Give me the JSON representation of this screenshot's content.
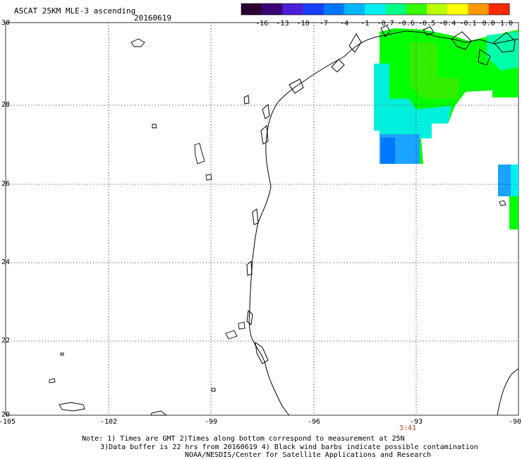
{
  "title": "ASCAT 25KM MLE-3 ascending",
  "date": "20160619",
  "colorbar": {
    "labels": [
      "-16",
      "-13",
      "-10",
      "-7",
      "-4",
      "-1",
      "-0.7",
      "-0.6",
      "-0.5",
      "-0.4",
      "-0.1",
      "0.0",
      "1.0"
    ],
    "colors": [
      "#2a0033",
      "#3a0077",
      "#4b1fd6",
      "#1a3fff",
      "#0077ff",
      "#00b7ff",
      "#00f0f0",
      "#00ff88",
      "#33ff00",
      "#bbff00",
      "#ffff00",
      "#ff9900",
      "#ff2a00"
    ]
  },
  "axes": {
    "lon_ticks": [
      "-105",
      "-102",
      "-99",
      "-96",
      "-93",
      "-90"
    ],
    "lat_ticks": [
      "30",
      "28",
      "26",
      "24",
      "22",
      "20"
    ],
    "lon_range": [
      -105,
      -90
    ],
    "lat_range": [
      20,
      30
    ],
    "grid": true
  },
  "pass_time": "3:41",
  "notes": [
    "Note: 1) Times are GMT 2)Times along bottom correspond to measurement at 25N",
    "3)Data buffer is 22 hrs from 20160619 4) Black wind barbs indicate possible contamination",
    "NOAA/NESDIS/Center for Satellite Applications and Research"
  ]
}
